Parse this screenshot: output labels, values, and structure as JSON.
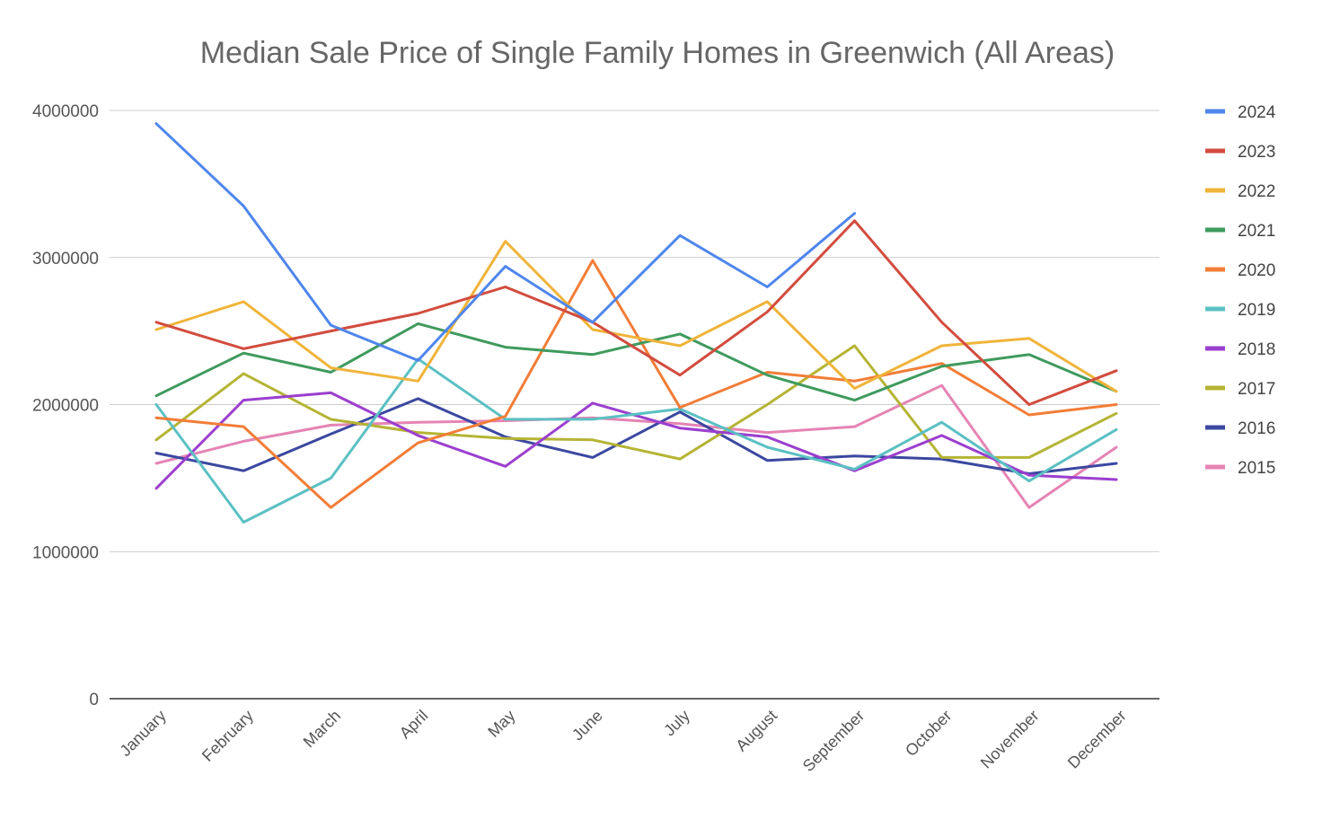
{
  "chart_data": {
    "type": "line",
    "title": "Median Sale Price of Single Family Homes in Greenwich (All Areas)",
    "xlabel": "",
    "ylabel": "",
    "ylim": [
      0,
      4000000
    ],
    "y_ticks": [
      "0",
      "1000000",
      "2000000",
      "3000000",
      "4000000"
    ],
    "y_tick_values": [
      0,
      1000000,
      2000000,
      3000000,
      4000000
    ],
    "grid": true,
    "legend_position": "right",
    "categories": [
      "January",
      "February",
      "March",
      "April",
      "May",
      "June",
      "July",
      "August",
      "September",
      "October",
      "November",
      "December"
    ],
    "series": [
      {
        "name": "2024",
        "color": "#4f86ec",
        "values": [
          3910000,
          3350000,
          2540000,
          2300000,
          2940000,
          2560000,
          3150000,
          2800000,
          3300000,
          null,
          null,
          null
        ]
      },
      {
        "name": "2023",
        "color": "#d24c3f",
        "values": [
          2560000,
          2380000,
          2500000,
          2620000,
          2800000,
          2560000,
          2200000,
          2630000,
          3250000,
          2560000,
          2000000,
          2230000
        ]
      },
      {
        "name": "2022",
        "color": "#f0b43a",
        "values": [
          2510000,
          2700000,
          2250000,
          2160000,
          3110000,
          2510000,
          2400000,
          2700000,
          2110000,
          2400000,
          2450000,
          2090000
        ]
      },
      {
        "name": "2021",
        "color": "#3f9a5e",
        "values": [
          2060000,
          2350000,
          2220000,
          2550000,
          2390000,
          2340000,
          2480000,
          2200000,
          2030000,
          2260000,
          2340000,
          2090000
        ]
      },
      {
        "name": "2020",
        "color": "#f27d37",
        "values": [
          1910000,
          1850000,
          1300000,
          1740000,
          1920000,
          2980000,
          1980000,
          2220000,
          2160000,
          2280000,
          1930000,
          2000000
        ]
      },
      {
        "name": "2019",
        "color": "#5bc0c3",
        "values": [
          2000000,
          1200000,
          1500000,
          2310000,
          1900000,
          1900000,
          1970000,
          1710000,
          1560000,
          1880000,
          1480000,
          1830000
        ]
      },
      {
        "name": "2018",
        "color": "#9b3fcf",
        "values": [
          1430000,
          2030000,
          2080000,
          1790000,
          1580000,
          2010000,
          1840000,
          1780000,
          1550000,
          1790000,
          1520000,
          1490000
        ]
      },
      {
        "name": "2017",
        "color": "#b5b434",
        "values": [
          1760000,
          2210000,
          1900000,
          1810000,
          1770000,
          1760000,
          1630000,
          2000000,
          2400000,
          1640000,
          1640000,
          1940000
        ]
      },
      {
        "name": "2016",
        "color": "#3b48a0",
        "values": [
          1670000,
          1550000,
          1800000,
          2040000,
          1780000,
          1640000,
          1950000,
          1620000,
          1650000,
          1630000,
          1530000,
          1600000
        ]
      },
      {
        "name": "2015",
        "color": "#e584b4",
        "values": [
          1600000,
          1750000,
          1860000,
          1880000,
          1890000,
          1910000,
          1870000,
          1810000,
          1850000,
          2130000,
          1300000,
          1710000
        ]
      }
    ]
  }
}
